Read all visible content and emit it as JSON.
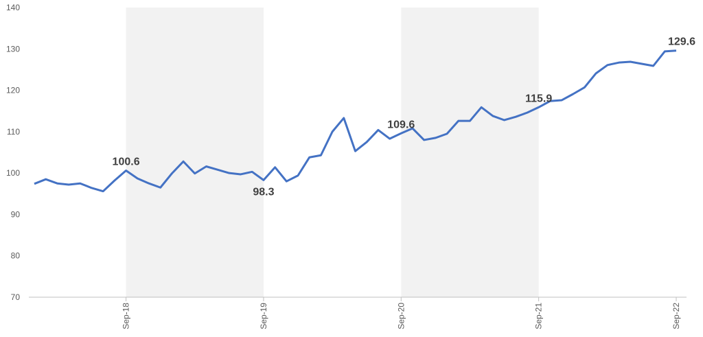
{
  "chart_data": {
    "type": "line",
    "categories": [
      null,
      null,
      null,
      null,
      null,
      null,
      null,
      null,
      "Sep-18",
      null,
      null,
      null,
      null,
      null,
      null,
      null,
      null,
      null,
      null,
      null,
      "Sep-19",
      null,
      null,
      null,
      null,
      null,
      null,
      null,
      null,
      null,
      null,
      null,
      "Sep-20",
      null,
      null,
      null,
      null,
      null,
      null,
      null,
      null,
      null,
      null,
      null,
      "Sep-21",
      null,
      null,
      null,
      null,
      null,
      null,
      null,
      null,
      null,
      null,
      null,
      "Sep-22"
    ],
    "series": [
      {
        "color": "#4472c4",
        "values": [
          97.4,
          98.5,
          97.5,
          97.2,
          97.5,
          96.4,
          95.6,
          98.2,
          100.6,
          98.7,
          97.5,
          96.5,
          99.9,
          102.8,
          99.9,
          101.6,
          100.8,
          100.0,
          99.7,
          100.3,
          98.3,
          101.4,
          98.0,
          99.4,
          103.8,
          104.3,
          110.0,
          113.3,
          105.3,
          107.5,
          110.4,
          108.3,
          109.6,
          110.8,
          108.0,
          108.5,
          109.5,
          112.6,
          112.6,
          115.9,
          113.8,
          112.8,
          113.6,
          114.6,
          115.9,
          117.4,
          117.6,
          119.1,
          120.7,
          124.1,
          126.1,
          126.7,
          126.9,
          126.4,
          125.9,
          129.4,
          129.6
        ],
        "value_labels": [
          null,
          null,
          null,
          null,
          null,
          null,
          null,
          null,
          "100.6",
          null,
          null,
          null,
          null,
          null,
          null,
          null,
          null,
          null,
          null,
          null,
          "98.3",
          null,
          null,
          null,
          null,
          null,
          null,
          null,
          null,
          null,
          null,
          null,
          "109.6",
          null,
          null,
          null,
          null,
          null,
          null,
          null,
          null,
          null,
          null,
          null,
          "115.9",
          null,
          null,
          null,
          null,
          null,
          null,
          null,
          null,
          null,
          null,
          null,
          "129.6"
        ]
      }
    ],
    "ylim": [
      70,
      140
    ],
    "yticks": [
      70,
      80,
      90,
      100,
      110,
      120,
      130,
      140
    ],
    "grid": false,
    "shade_color": "#f2f2f2"
  }
}
